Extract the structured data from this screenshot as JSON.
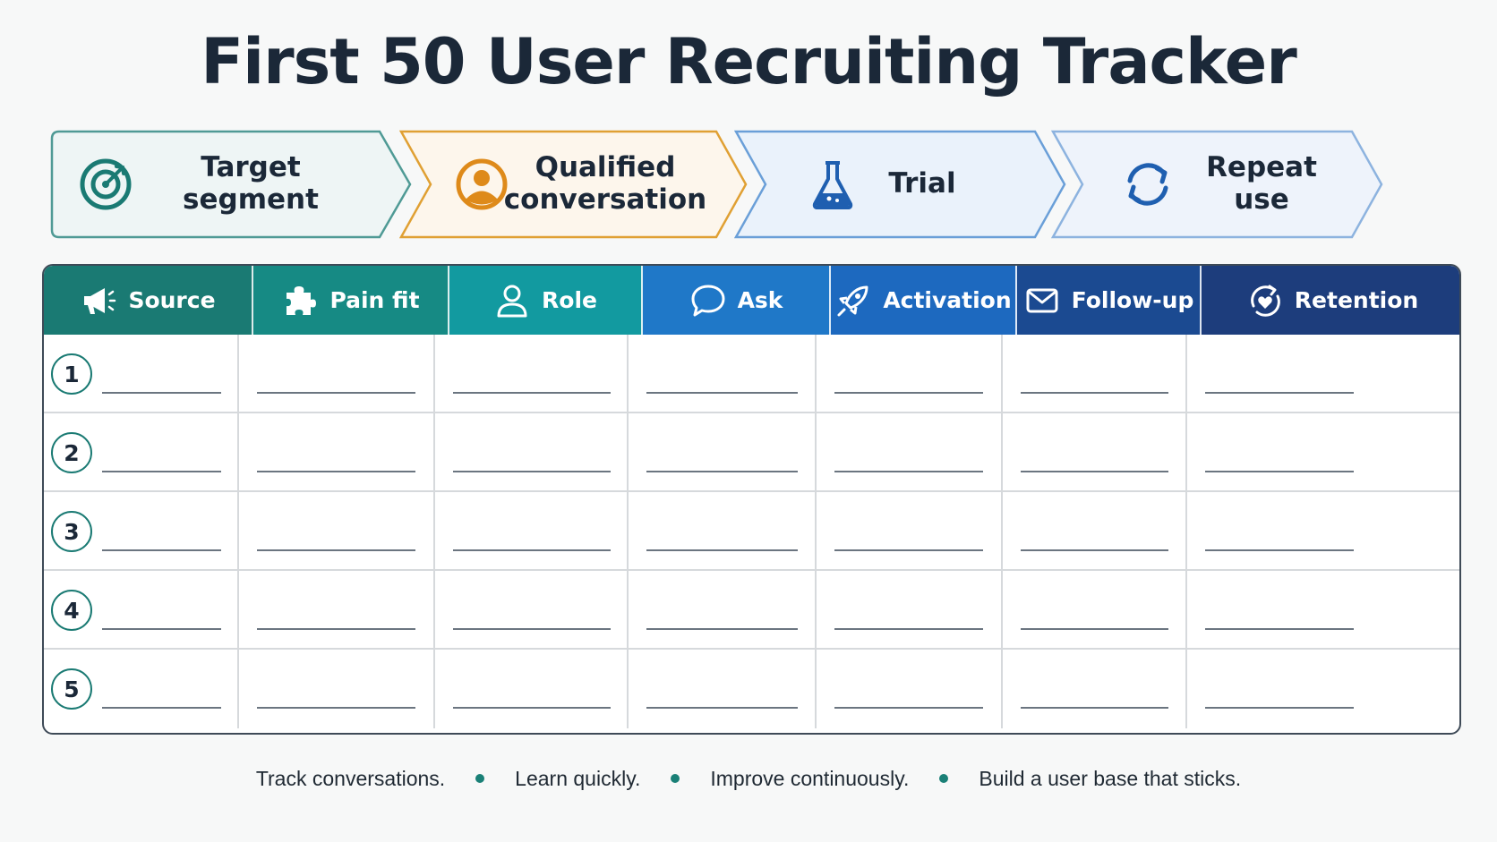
{
  "title": "First 50 User Recruiting Tracker",
  "stages": [
    {
      "label": "Target segment",
      "icon": "target-icon",
      "fill": "#eef5f5",
      "stroke": "#4f9a95",
      "icon_color": "#1a7a73"
    },
    {
      "label": "Qualified conversation",
      "icon": "user-circle-icon",
      "fill": "#fdf6ec",
      "stroke": "#e0a033",
      "icon_color": "#de8a1a"
    },
    {
      "label": "Trial",
      "icon": "flask-icon",
      "fill": "#eaf2fb",
      "stroke": "#6a9fd8",
      "icon_color": "#1f5fb0"
    },
    {
      "label": "Repeat use",
      "icon": "refresh-icon",
      "fill": "#eef3fb",
      "stroke": "#8db3df",
      "icon_color": "#1f5fb0"
    }
  ],
  "columns": [
    {
      "label": "Source",
      "icon": "megaphone-icon",
      "color": "#1a7a73"
    },
    {
      "label": "Pain fit",
      "icon": "puzzle-icon",
      "color": "#168a84"
    },
    {
      "label": "Role",
      "icon": "person-icon",
      "color": "#129aa0"
    },
    {
      "label": "Ask",
      "icon": "chat-bubble-icon",
      "color": "#1f78c8"
    },
    {
      "label": "Activation",
      "icon": "rocket-icon",
      "color": "#1d69bf"
    },
    {
      "label": "Follow-up",
      "icon": "envelope-icon",
      "color": "#1b4a91"
    },
    {
      "label": "Retention",
      "icon": "heart-cycle-icon",
      "color": "#1d3d7c"
    }
  ],
  "rows": [
    "1",
    "2",
    "3",
    "4",
    "5"
  ],
  "footer": [
    "Track conversations.",
    "Learn quickly.",
    "Improve continuously.",
    "Build a user base that sticks."
  ],
  "colors": {
    "accent": "#1a7a73",
    "title": "#1b2838",
    "border": "#3e4a57"
  }
}
